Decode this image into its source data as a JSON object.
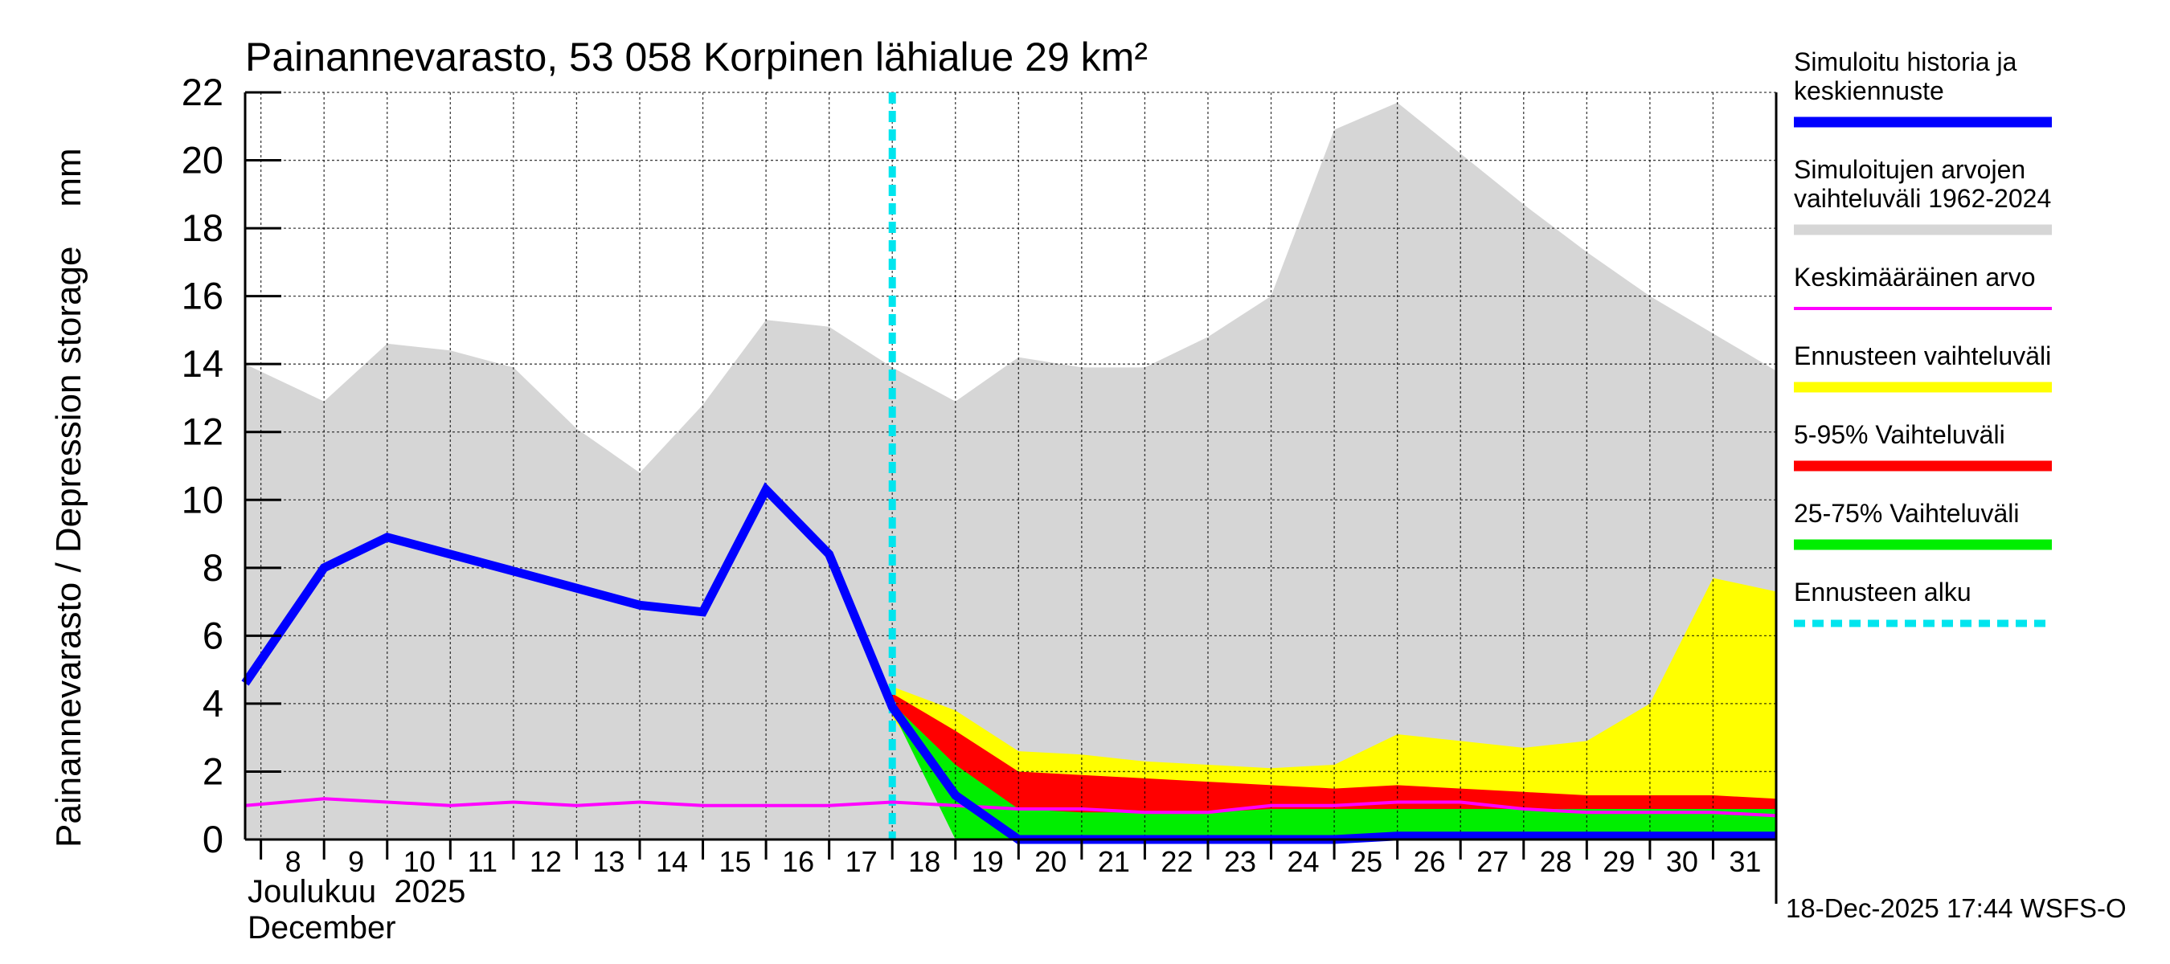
{
  "chart_data": {
    "type": "area",
    "title": "Painannevarasto, 53 058 Korpinen lähialue 29 km²",
    "ylabel": "Painannevarasto / Depression storage    mm",
    "ylim": [
      0,
      22
    ],
    "yticks": [
      0,
      2,
      4,
      6,
      8,
      10,
      12,
      14,
      16,
      18,
      20,
      22
    ],
    "xlim": [
      7.75,
      32
    ],
    "xtick_days": [
      8,
      9,
      10,
      11,
      12,
      13,
      14,
      15,
      16,
      17,
      18,
      19,
      20,
      21,
      22,
      23,
      24,
      25,
      26,
      27,
      28,
      29,
      30,
      31
    ],
    "month_label_fi": "Joulukuu  2025",
    "month_label_en": "December",
    "forecast_start_day": 18,
    "footer": "18-Dec-2025 17:44 WSFS-O",
    "series": [
      {
        "name": "Simuloitujen arvojen vaihteluväli 1962-2024",
        "role": "range",
        "color": "#d6d6d6",
        "x": [
          7.75,
          9,
          10,
          11,
          12,
          13,
          14,
          15,
          16,
          17,
          18,
          19,
          20,
          21,
          22,
          23,
          24,
          25,
          26,
          27,
          28,
          29,
          30,
          31,
          32
        ],
        "upper": [
          14.0,
          12.9,
          14.6,
          14.4,
          13.9,
          12.1,
          10.8,
          12.8,
          15.3,
          15.1,
          13.9,
          12.9,
          14.2,
          13.9,
          13.9,
          14.8,
          16.0,
          20.9,
          21.7,
          20.2,
          18.7,
          17.3,
          16.0,
          14.9,
          13.8
        ],
        "lower": [
          0,
          0,
          0,
          0,
          0,
          0,
          0,
          0,
          0,
          0,
          0,
          0,
          0,
          0,
          0,
          0,
          0,
          0,
          0,
          0,
          0,
          0,
          0,
          0,
          0
        ]
      },
      {
        "name": "Ennusteen vaihteluväli",
        "role": "range",
        "color": "#ffff00",
        "x": [
          18,
          19,
          20,
          21,
          22,
          23,
          24,
          25,
          26,
          27,
          28,
          29,
          30,
          31,
          32
        ],
        "upper": [
          4.5,
          3.8,
          2.6,
          2.5,
          2.3,
          2.2,
          2.1,
          2.2,
          3.1,
          2.9,
          2.7,
          2.9,
          4.0,
          7.7,
          7.3
        ],
        "lower": [
          3.6,
          1.0,
          0.0,
          0.0,
          0.0,
          0.0,
          0.0,
          0.0,
          0.0,
          0.0,
          0.0,
          0.0,
          0.0,
          0.0,
          0.0
        ]
      },
      {
        "name": "5-95% Vaihteluväli",
        "role": "range",
        "color": "#ff0000",
        "x": [
          18,
          19,
          20,
          21,
          22,
          23,
          24,
          25,
          26,
          27,
          28,
          29,
          30,
          31,
          32
        ],
        "upper": [
          4.3,
          3.2,
          2.0,
          1.9,
          1.8,
          1.7,
          1.6,
          1.5,
          1.6,
          1.5,
          1.4,
          1.3,
          1.3,
          1.3,
          1.2
        ],
        "lower": [
          3.7,
          1.1,
          0.1,
          0.1,
          0.1,
          0.1,
          0.1,
          0.1,
          0.1,
          0.1,
          0.1,
          0.1,
          0.1,
          0.1,
          0.1
        ]
      },
      {
        "name": "25-75% Vaihteluväli",
        "role": "range",
        "color": "#00ee00",
        "x": [
          18,
          19,
          20,
          21,
          22,
          23,
          24,
          25,
          26,
          27,
          28,
          29,
          30,
          31,
          32
        ],
        "upper": [
          4.0,
          2.2,
          0.9,
          0.8,
          0.8,
          0.8,
          0.9,
          0.9,
          0.9,
          0.9,
          0.9,
          0.9,
          0.9,
          0.9,
          0.9
        ],
        "lower": [
          3.8,
          0.0,
          0.0,
          0.0,
          0.0,
          0.0,
          0.0,
          0.0,
          0.0,
          0.0,
          0.0,
          0.0,
          0.0,
          0.0,
          0.0
        ]
      },
      {
        "name": "Keskimääräinen arvo",
        "role": "line",
        "color": "#ff00ff",
        "width": 4,
        "x": [
          7.75,
          9,
          10,
          11,
          12,
          13,
          14,
          15,
          16,
          17,
          18,
          19,
          20,
          21,
          22,
          23,
          24,
          25,
          26,
          27,
          28,
          29,
          30,
          31,
          32
        ],
        "y": [
          1.0,
          1.2,
          1.1,
          1.0,
          1.1,
          1.0,
          1.1,
          1.0,
          1.0,
          1.0,
          1.1,
          1.0,
          0.9,
          0.9,
          0.8,
          0.8,
          1.0,
          1.0,
          1.1,
          1.1,
          0.9,
          0.8,
          0.8,
          0.8,
          0.7
        ]
      },
      {
        "name": "Simuloitu historia ja keskiennuste",
        "role": "line",
        "color": "#0000ff",
        "width": 11,
        "x": [
          7.75,
          9,
          10,
          11,
          12,
          13,
          14,
          15,
          16,
          17,
          18,
          19,
          20,
          21,
          22,
          23,
          24,
          25,
          26,
          27,
          28,
          29,
          30,
          31,
          32
        ],
        "y": [
          4.6,
          8.0,
          8.9,
          8.4,
          7.9,
          7.4,
          6.9,
          6.7,
          10.3,
          8.4,
          3.9,
          1.3,
          0.0,
          0.0,
          0.0,
          0.0,
          0.0,
          0.0,
          0.1,
          0.1,
          0.1,
          0.1,
          0.1,
          0.1,
          0.1
        ]
      }
    ],
    "legend": [
      {
        "label": "Simuloitu historia ja keskiennuste",
        "color": "#0000ff",
        "style": "thick"
      },
      {
        "label": "Simuloitujen arvojen vaihteluväli 1962-2024",
        "color": "#d6d6d6",
        "style": "thick"
      },
      {
        "label": "Keskimääräinen arvo",
        "color": "#ff00ff",
        "style": "thin"
      },
      {
        "label": "Ennusteen vaihteluväli",
        "color": "#ffff00",
        "style": "thick"
      },
      {
        "label": "5-95% Vaihteluväli",
        "color": "#ff0000",
        "style": "thick"
      },
      {
        "label": "25-75% Vaihteluväli",
        "color": "#00ee00",
        "style": "thick"
      },
      {
        "label": "Ennusteen alku",
        "color": "#00e5ee",
        "style": "dashed"
      }
    ]
  }
}
